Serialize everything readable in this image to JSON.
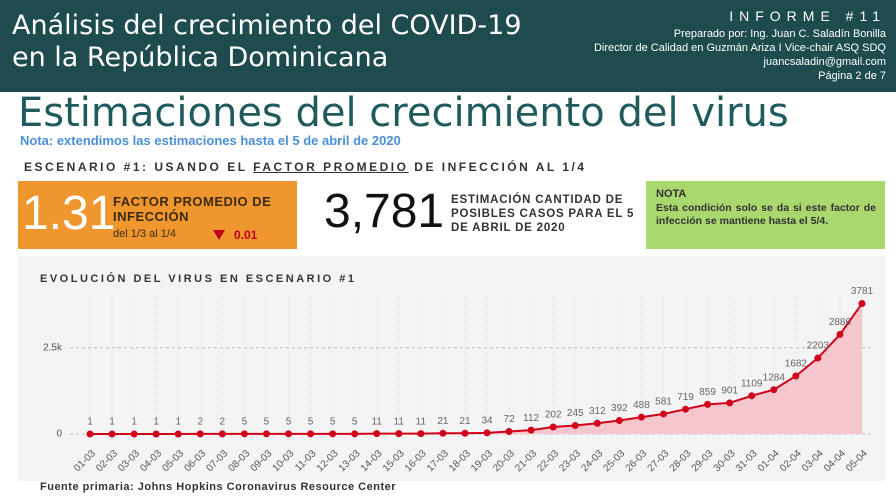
{
  "header": {
    "title_lines": [
      "Análisis del crecimiento del COVID-19",
      "en la República Dominicana"
    ],
    "report": "INFORME #11",
    "prepared_by": "Preparado por: Ing. Juan C. Saladín Bonilla",
    "role": "Director de Calidad en Guzmán Ariza I Vice-chair ASQ SDQ",
    "email": "juancsaladin@gmail.com",
    "page": "Página 2 de 7"
  },
  "main_title": "Estimaciones del crecimiento del virus",
  "note": "Nota: extendimos las estimaciones hasta el 5 de abril de 2020",
  "scenario": {
    "prefix": "ESCENARIO #1: USANDO EL",
    "underlined": "FACTOR PROMEDIO",
    "suffix": "DE INFECCIÓN AL 1/4"
  },
  "kpis": {
    "factor": {
      "value": "1.31",
      "label": "FACTOR PROMEDIO DE INFECCIÓN",
      "period": "del 1/3 al 1/4",
      "change": "0.01"
    },
    "estimate": {
      "value": "3,781",
      "label": "ESTIMACIÓN CANTIDAD DE POSIBLES CASOS PARA EL 5 DE ABRIL DE 2020"
    },
    "nota": {
      "title": "NOTA",
      "text": "Esta condición solo se da si este factor de infección se mantiene hasta el 5/4."
    }
  },
  "chart_data": {
    "type": "line",
    "title": "EVOLUCIÓN DEL VIRUS EN ESCENARIO #1",
    "categories": [
      "01-03",
      "02-03",
      "03-03",
      "04-03",
      "05-03",
      "06-03",
      "07-03",
      "08-03",
      "09-03",
      "10-03",
      "11-03",
      "12-03",
      "13-03",
      "14-03",
      "15-03",
      "16-03",
      "17-03",
      "18-03",
      "19-03",
      "20-03",
      "21-03",
      "22-03",
      "23-03",
      "24-03",
      "25-03",
      "26-03",
      "27-03",
      "28-03",
      "29-03",
      "30-03",
      "31-03",
      "01-04",
      "02-04",
      "03-04",
      "04-04",
      "05-04"
    ],
    "values": [
      1,
      1,
      1,
      1,
      1,
      2,
      2,
      5,
      5,
      5,
      5,
      5,
      5,
      11,
      11,
      11,
      21,
      21,
      34,
      72,
      112,
      202,
      245,
      312,
      392,
      488,
      581,
      719,
      859,
      901,
      1109,
      1284,
      1682,
      2203,
      2886,
      3781
    ],
    "color": "#d0021b",
    "area_color": "#f5c6cc",
    "ylim": [
      0,
      4000
    ],
    "yticks": [
      0,
      {
        "value": 2500,
        "label": "2.5k"
      }
    ],
    "grid": true
  },
  "footer": "Fuente primaria: Johns Hopkins Coronavirus Resource Center"
}
